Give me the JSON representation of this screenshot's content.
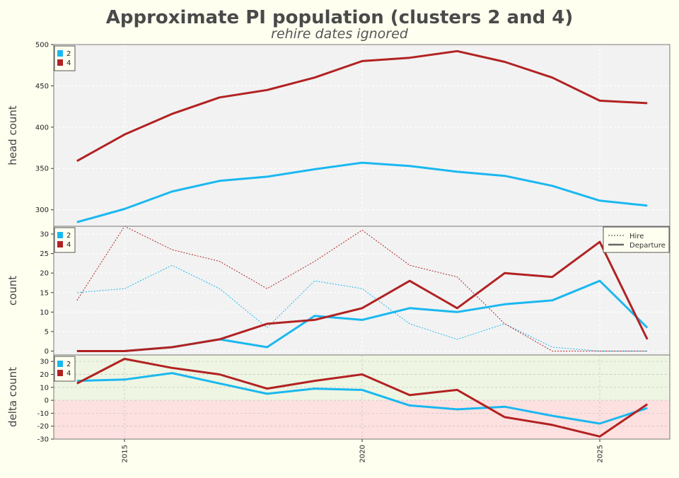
{
  "title": "Approximate PI population (clusters 2 and 4)",
  "subtitle": "rehire dates ignored",
  "colors": {
    "cluster_2": "#1ab8f0",
    "cluster_4": "#b22222",
    "panel_bg": "#f2f2f2",
    "page_bg": "#fffff0",
    "positive_band": "#eef5e2",
    "negative_band": "#fde0e0"
  },
  "chart_data": [
    {
      "type": "line",
      "ylabel": "head count",
      "ylim": [
        280,
        500
      ],
      "yticks": [
        300,
        350,
        400,
        450,
        500
      ],
      "legend_placement": "top-left",
      "x": [
        2014,
        2015,
        2016,
        2017,
        2018,
        2019,
        2020,
        2021,
        2022,
        2023,
        2024,
        2025,
        2026
      ],
      "series": [
        {
          "name": "2",
          "values": [
            285,
            301,
            322,
            335,
            340,
            349,
            357,
            353,
            346,
            341,
            329,
            311,
            305
          ]
        },
        {
          "name": "4",
          "values": [
            359,
            391,
            416,
            436,
            445,
            460,
            480,
            484,
            492,
            479,
            460,
            432,
            429
          ]
        }
      ]
    },
    {
      "type": "line",
      "ylabel": "count",
      "ylim": [
        -1,
        32
      ],
      "yticks": [
        0,
        5,
        10,
        15,
        20,
        25,
        30
      ],
      "legend_placement": "top-left",
      "style_legend": [
        "Hire",
        "Departure"
      ],
      "style_legend_placement": "top-right",
      "x": [
        2014,
        2015,
        2016,
        2017,
        2018,
        2019,
        2020,
        2021,
        2022,
        2023,
        2024,
        2025,
        2026
      ],
      "series": [
        {
          "name": "2",
          "kind": "Hire",
          "values": [
            15,
            16,
            22,
            16,
            6,
            18,
            16,
            7,
            3,
            7,
            1,
            0,
            0
          ]
        },
        {
          "name": "4",
          "kind": "Hire",
          "values": [
            13,
            32,
            26,
            23,
            16,
            23,
            31,
            22,
            19,
            7,
            0,
            0,
            0
          ]
        },
        {
          "name": "2",
          "kind": "Departure",
          "values": [
            0,
            0,
            1,
            3,
            1,
            9,
            8,
            11,
            10,
            12,
            13,
            18,
            6
          ]
        },
        {
          "name": "4",
          "kind": "Departure",
          "values": [
            0,
            0,
            1,
            3,
            7,
            8,
            11,
            18,
            11,
            20,
            19,
            28,
            3
          ]
        }
      ]
    },
    {
      "type": "line",
      "ylabel": "delta count",
      "ylim": [
        -30,
        35
      ],
      "yticks": [
        -30,
        -20,
        -10,
        0,
        10,
        20,
        30
      ],
      "legend_placement": "top-left",
      "xticks": [
        2015,
        2020,
        2025
      ],
      "x": [
        2014,
        2015,
        2016,
        2017,
        2018,
        2019,
        2020,
        2021,
        2022,
        2023,
        2024,
        2025,
        2026
      ],
      "series": [
        {
          "name": "2",
          "values": [
            15,
            16,
            21,
            13,
            5,
            9,
            8,
            -4,
            -7,
            -5,
            -12,
            -18,
            -6
          ]
        },
        {
          "name": "4",
          "values": [
            13,
            32,
            25,
            20,
            9,
            15,
            20,
            4,
            8,
            -13,
            -19,
            -28,
            -3
          ]
        }
      ]
    }
  ]
}
